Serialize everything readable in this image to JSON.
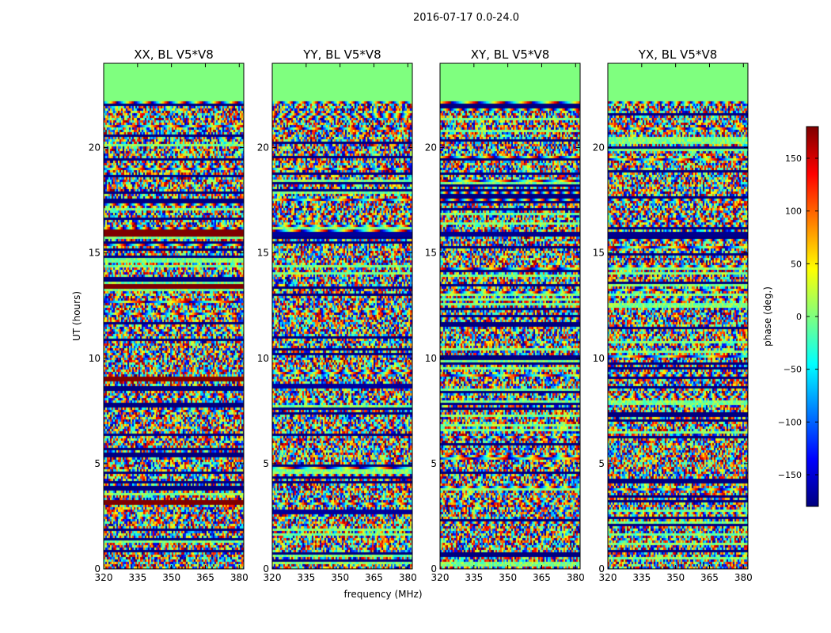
{
  "figure": {
    "suptitle": "2016-07-17 0.0-24.0"
  },
  "colorbar": {
    "label": "phase (deg.)",
    "range": [
      -180,
      180
    ],
    "ticks": [
      150,
      100,
      50,
      0,
      -50,
      -100,
      -150
    ],
    "tick_labels": [
      "150",
      "100",
      "50",
      "0",
      "−50",
      "−100",
      "−150"
    ],
    "colormap": "jet",
    "colors": [
      "#00007f",
      "#0000ff",
      "#007fff",
      "#00ffff",
      "#7fff7f",
      "#ffff00",
      "#ff7f00",
      "#ff0000",
      "#7f0000"
    ]
  },
  "chart_data": [
    {
      "type": "heatmap",
      "title": "XX, BL V5*V8",
      "xlabel": "",
      "ylabel": "UT (hours)",
      "xlim": [
        320,
        382
      ],
      "ylim": [
        0,
        24
      ],
      "xticks": [
        320,
        335,
        350,
        365,
        380
      ],
      "yticks": [
        0,
        5,
        10,
        15,
        20
      ],
      "z_label": "phase (deg.)",
      "z_range": [
        -180,
        180
      ],
      "flagged_value": 0,
      "flagged_hours": [
        [
          22.3,
          24.0
        ]
      ],
      "zero_phase_hours": [
        [
          3.05,
          3.35
        ],
        [
          8.95,
          9.15
        ],
        [
          13.35,
          13.55
        ],
        [
          15.8,
          16.2
        ]
      ],
      "zero_phase_value": 180,
      "seed": 11
    },
    {
      "type": "heatmap",
      "title": "YY, BL V5*V8",
      "xlabel": "frequency (MHz)",
      "ylabel": "",
      "xlim": [
        320,
        382
      ],
      "ylim": [
        0,
        24
      ],
      "xticks": [
        320,
        335,
        350,
        365,
        380
      ],
      "yticks": [
        0,
        5,
        10,
        15,
        20
      ],
      "z_label": "phase (deg.)",
      "z_range": [
        -180,
        180
      ],
      "flagged_value": 0,
      "flagged_hours": [
        [
          22.3,
          24.0
        ]
      ],
      "zero_phase_hours": [
        [
          2.6,
          2.9
        ],
        [
          8.6,
          8.8
        ],
        [
          15.8,
          16.1
        ]
      ],
      "zero_phase_value": -170,
      "seed": 23
    },
    {
      "type": "heatmap",
      "title": "XY, BL V5*V8",
      "xlabel": "",
      "ylabel": "",
      "xlim": [
        320,
        382
      ],
      "ylim": [
        0,
        24
      ],
      "xticks": [
        320,
        335,
        350,
        365,
        380
      ],
      "yticks": [
        0,
        5,
        10,
        15,
        20
      ],
      "z_label": "phase (deg.)",
      "z_range": [
        -180,
        180
      ],
      "flagged_value": 0,
      "flagged_hours": [
        [
          22.3,
          24.0
        ]
      ],
      "zero_phase_hours": [
        [
          15.8,
          16.0
        ]
      ],
      "zero_phase_value": -175,
      "seed": 37
    },
    {
      "type": "heatmap",
      "title": "YX, BL V5*V8",
      "xlabel": "",
      "ylabel": "",
      "xlim": [
        320,
        382
      ],
      "ylim": [
        0,
        24
      ],
      "xticks": [
        320,
        335,
        350,
        365,
        380
      ],
      "yticks": [
        0,
        5,
        10,
        15,
        20
      ],
      "z_label": "phase (deg.)",
      "z_range": [
        -180,
        180
      ],
      "flagged_value": 0,
      "flagged_hours": [
        [
          22.3,
          24.0
        ]
      ],
      "zero_phase_hours": [
        [
          15.8,
          16.0
        ]
      ],
      "zero_phase_value": -175,
      "seed": 51
    }
  ]
}
